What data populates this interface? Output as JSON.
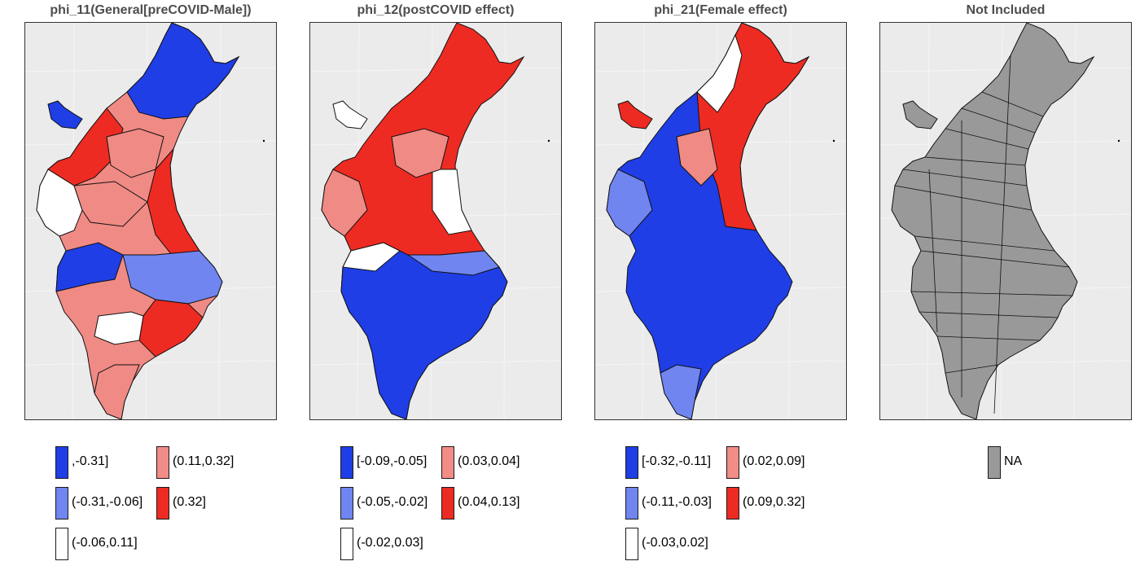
{
  "panels": [
    {
      "title": "phi_11(General[preCOVID-Male])",
      "legend": [
        {
          "label": ",-0.31]",
          "color": "#1f3ee6"
        },
        {
          "label": "(0.11,0.32]",
          "color": "#f28c86"
        },
        {
          "label": "(-0.31,-0.06]",
          "color": "#7085f0"
        },
        {
          "label": "(0.32]",
          "color": "#ee2b22"
        },
        {
          "label": "(-0.06,0.11]",
          "color": "#ffffff"
        }
      ]
    },
    {
      "title": "phi_12(postCOVID effect)",
      "legend": [
        {
          "label": "[-0.09,-0.05]",
          "color": "#1f3ee6"
        },
        {
          "label": "(0.03,0.04]",
          "color": "#f28c86"
        },
        {
          "label": "(-0.05,-0.02]",
          "color": "#7085f0"
        },
        {
          "label": "(0.04,0.13]",
          "color": "#ee2b22"
        },
        {
          "label": "(-0.02,0.03]",
          "color": "#ffffff"
        }
      ]
    },
    {
      "title": "phi_21(Female effect)",
      "legend": [
        {
          "label": "[-0.32,-0.11]",
          "color": "#1f3ee6"
        },
        {
          "label": "(0.02,0.09]",
          "color": "#f28c86"
        },
        {
          "label": "(-0.11,-0.03]",
          "color": "#7085f0"
        },
        {
          "label": "(0.09,0.32]",
          "color": "#ee2b22"
        },
        {
          "label": "(-0.03,0.02]",
          "color": "#ffffff"
        }
      ]
    },
    {
      "title": "Not Included",
      "legend": [
        {
          "label": "NA",
          "color": "#999999"
        }
      ]
    }
  ]
}
